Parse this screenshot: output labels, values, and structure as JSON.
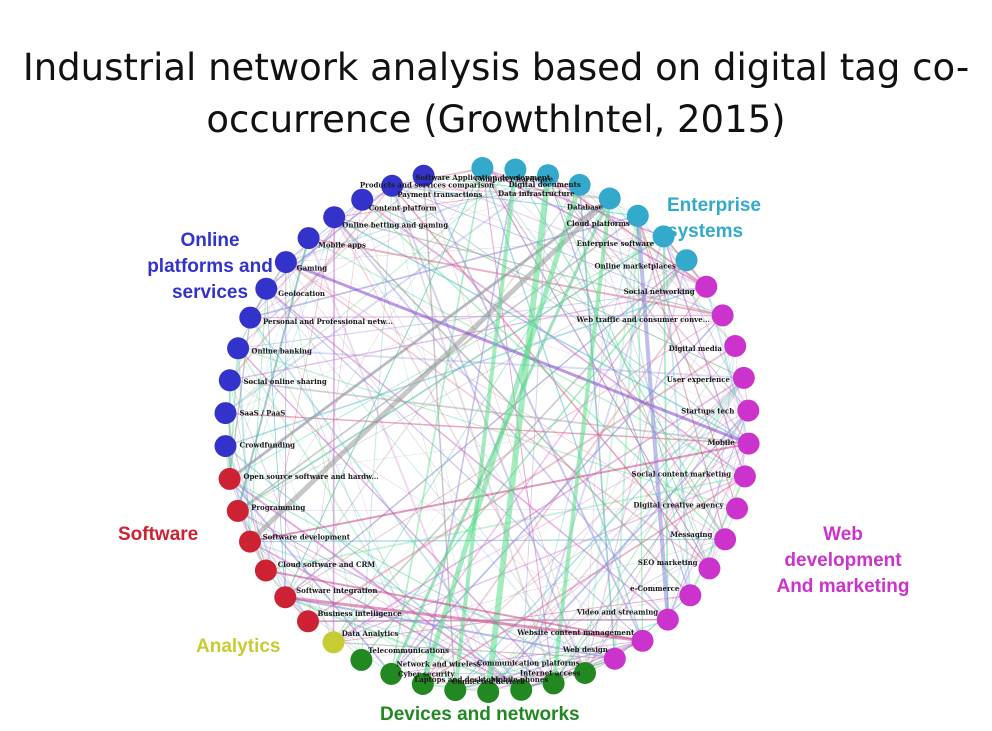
{
  "slide": {
    "title_line1": "Industrial network analysis based on digital tag co-",
    "title_line2": "occurrence (GrowthIntel, 2015)"
  },
  "clusters": {
    "online": {
      "name_line1": "Online",
      "name_line2": "platforms and",
      "name_line3": "services",
      "color": "#3333cc"
    },
    "enterprise": {
      "name_line1": "Enterprise",
      "name_line2": "systems",
      "color": "#33aacc"
    },
    "web": {
      "name_line1": "Web",
      "name_line2": "development",
      "name_line3": "And marketing",
      "color": "#cc33cc"
    },
    "software": {
      "name_line1": "Software",
      "color": "#cc2233"
    },
    "analytics": {
      "name_line1": "Analytics",
      "color": "#c8cc33"
    },
    "devices": {
      "name_line1": "Devices and networks",
      "color": "#228822"
    }
  },
  "nodes": [
    {
      "label": "Software Application development",
      "cluster": "enterprise"
    },
    {
      "label": "Computer hardware",
      "cluster": "enterprise"
    },
    {
      "label": "Digital documents",
      "cluster": "enterprise"
    },
    {
      "label": "Data infrastructure",
      "cluster": "enterprise"
    },
    {
      "label": "Database",
      "cluster": "enterprise"
    },
    {
      "label": "Cloud platforms",
      "cluster": "enterprise"
    },
    {
      "label": "Enterprise software",
      "cluster": "enterprise"
    },
    {
      "label": "Online marketplaces",
      "cluster": "enterprise"
    },
    {
      "label": "Social networking",
      "cluster": "web"
    },
    {
      "label": "Web traffic and consumer conve...",
      "cluster": "web"
    },
    {
      "label": "Digital media",
      "cluster": "web"
    },
    {
      "label": "User experience",
      "cluster": "web"
    },
    {
      "label": "Startups tech",
      "cluster": "web"
    },
    {
      "label": "Mobile",
      "cluster": "web"
    },
    {
      "label": "Social content marketing",
      "cluster": "web"
    },
    {
      "label": "Digital creative agency",
      "cluster": "web"
    },
    {
      "label": "Messaging",
      "cluster": "web"
    },
    {
      "label": "SEO marketing",
      "cluster": "web"
    },
    {
      "label": "e-Commerce",
      "cluster": "web"
    },
    {
      "label": "Video and streaming",
      "cluster": "web"
    },
    {
      "label": "Website content management",
      "cluster": "web"
    },
    {
      "label": "Web design",
      "cluster": "web"
    },
    {
      "label": "Communication platforms",
      "cluster": "devices"
    },
    {
      "label": "Internet access",
      "cluster": "devices"
    },
    {
      "label": "Mobile phones",
      "cluster": "devices"
    },
    {
      "label": "Connected devices",
      "cluster": "devices"
    },
    {
      "label": "Laptops and desktops",
      "cluster": "devices"
    },
    {
      "label": "Cyber security",
      "cluster": "devices"
    },
    {
      "label": "Network and wireless",
      "cluster": "devices"
    },
    {
      "label": "Telecommunications",
      "cluster": "devices"
    },
    {
      "label": "Data Analytics",
      "cluster": "analytics"
    },
    {
      "label": "Business intelligence",
      "cluster": "software"
    },
    {
      "label": "Software integration",
      "cluster": "software"
    },
    {
      "label": "Cloud software and CRM",
      "cluster": "software"
    },
    {
      "label": "Software development",
      "cluster": "software"
    },
    {
      "label": "Programming",
      "cluster": "software"
    },
    {
      "label": "Open source software and hardw...",
      "cluster": "software"
    },
    {
      "label": "Crowdfunding",
      "cluster": "online"
    },
    {
      "label": "SaaS / PaaS",
      "cluster": "online"
    },
    {
      "label": "Social online sharing",
      "cluster": "online"
    },
    {
      "label": "Online banking",
      "cluster": "online"
    },
    {
      "label": "Personal and Professional netw...",
      "cluster": "online"
    },
    {
      "label": "Geolocation",
      "cluster": "online"
    },
    {
      "label": "Gaming",
      "cluster": "online"
    },
    {
      "label": "Mobile apps",
      "cluster": "online"
    },
    {
      "label": "Online betting and gaming",
      "cluster": "online"
    },
    {
      "label": "Content platform",
      "cluster": "online"
    },
    {
      "label": "Payment transactions",
      "cluster": "online"
    },
    {
      "label": "Products and services comparison",
      "cluster": "online"
    }
  ]
}
